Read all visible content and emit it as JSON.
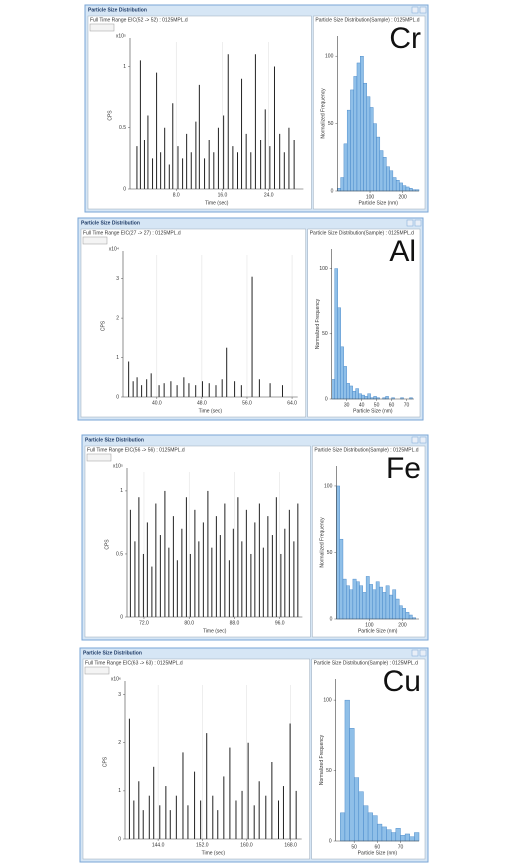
{
  "windows": [
    {
      "title": "Particle Size Distribution",
      "element": "Cr"
    },
    {
      "title": "Particle Size Distribution",
      "element": "Al"
    },
    {
      "title": "Particle Size Distribution",
      "element": "Fe"
    },
    {
      "title": "Particle Size Distribution",
      "element": "Cu"
    }
  ],
  "chart_data": [
    {
      "type": "spikes",
      "title": "Full Time Range EIC(52 -> 52) : 0125MPL.d",
      "y_scale": "x10⁵",
      "ylabel": "CPS",
      "xlabel": "Time (sec)",
      "color": "#222222",
      "grid": true,
      "xlim": [
        0,
        30
      ],
      "xticks": [
        {
          "value": 8,
          "label": "8.0"
        },
        {
          "value": 16,
          "label": "16.0"
        },
        {
          "value": 24,
          "label": "24.0"
        }
      ],
      "ylim": [
        0,
        1.2
      ],
      "yticks": [
        0,
        0.5,
        1
      ],
      "x": [
        1.2,
        1.8,
        2.5,
        3.1,
        3.9,
        4.6,
        5.3,
        6.0,
        6.8,
        7.4,
        8.3,
        9.1,
        9.8,
        10.6,
        11.4,
        12.0,
        12.9,
        13.7,
        14.5,
        15.3,
        16.2,
        17.0,
        17.8,
        18.6,
        19.3,
        20.1,
        20.9,
        21.7,
        22.6,
        23.4,
        24.2,
        25.0,
        25.9,
        26.7,
        27.5,
        28.4
      ],
      "values": [
        0.35,
        1.05,
        0.4,
        0.6,
        0.25,
        0.95,
        0.3,
        0.5,
        0.2,
        0.7,
        0.35,
        0.25,
        0.45,
        0.3,
        0.55,
        0.85,
        0.25,
        0.4,
        0.3,
        0.5,
        0.6,
        1.1,
        0.35,
        0.3,
        0.9,
        0.45,
        0.3,
        1.1,
        0.4,
        0.65,
        0.35,
        1.0,
        0.45,
        0.3,
        0.5,
        0.4
      ]
    },
    {
      "type": "histogram",
      "title": "Particle Size Distribution(Sample) : 0125MPL.d",
      "ylabel": "Normalized Frequency",
      "xlabel": "Particle Size (nm)",
      "color": "#8fbfe8",
      "xlim": [
        0,
        250
      ],
      "xticks": [
        100,
        200
      ],
      "ylim": [
        0,
        115
      ],
      "yticks": [
        0,
        50,
        100
      ],
      "bins": [
        0,
        10,
        20,
        30,
        40,
        50,
        60,
        70,
        80,
        90,
        100,
        110,
        120,
        130,
        140,
        150,
        160,
        170,
        180,
        190,
        200,
        210,
        220,
        230,
        240,
        250
      ],
      "values": [
        2,
        10,
        35,
        60,
        75,
        85,
        95,
        100,
        80,
        70,
        62,
        50,
        40,
        30,
        25,
        18,
        15,
        10,
        8,
        6,
        4,
        3,
        2,
        1,
        1
      ]
    },
    {
      "type": "spikes",
      "title": "Full Time Range EIC(27 -> 27) : 0125MPL.d",
      "y_scale": "x10⁴",
      "ylabel": "CPS",
      "xlabel": "Time (sec)",
      "color": "#222222",
      "grid": true,
      "xlim": [
        34,
        65
      ],
      "xticks": [
        {
          "value": 40,
          "label": "40.0"
        },
        {
          "value": 48,
          "label": "48.0"
        },
        {
          "value": 56,
          "label": "56.0"
        },
        {
          "value": 64,
          "label": "64.0"
        }
      ],
      "ylim": [
        0,
        3.6
      ],
      "yticks": [
        0,
        1,
        2,
        3
      ],
      "x": [
        35.0,
        35.8,
        36.5,
        37.3,
        38.2,
        39.0,
        40.4,
        41.3,
        42.5,
        43.6,
        44.8,
        45.7,
        46.9,
        48.1,
        49.3,
        50.5,
        51.6,
        52.4,
        53.8,
        55.0,
        56.9,
        58.2,
        60.1,
        62.3
      ],
      "values": [
        0.9,
        0.4,
        0.5,
        0.3,
        0.45,
        0.6,
        0.3,
        0.35,
        0.4,
        0.3,
        0.5,
        0.35,
        0.3,
        0.4,
        0.35,
        0.3,
        0.45,
        1.25,
        0.4,
        0.3,
        3.05,
        0.45,
        0.35,
        0.3
      ]
    },
    {
      "type": "histogram",
      "title": "Particle Size Distribution(Sample) : 0125MPL.d",
      "ylabel": "Normalized Frequency",
      "xlabel": "Particle Size (nm)",
      "color": "#8fbfe8",
      "xlim": [
        20,
        75
      ],
      "xticks": [
        30,
        40,
        50,
        60,
        70
      ],
      "ylim": [
        0,
        115
      ],
      "yticks": [
        0,
        50,
        100
      ],
      "bins": [
        20,
        22,
        24,
        26,
        28,
        30,
        32,
        34,
        36,
        38,
        40,
        42,
        44,
        46,
        48,
        50,
        52,
        54,
        56,
        58,
        60,
        62,
        64,
        66,
        68,
        70,
        72,
        74
      ],
      "values": [
        15,
        100,
        70,
        40,
        25,
        12,
        10,
        6,
        8,
        4,
        3,
        2,
        4,
        1,
        2,
        1,
        0,
        1,
        2,
        0,
        1,
        0,
        0,
        1,
        0,
        0,
        1
      ]
    },
    {
      "type": "spikes",
      "title": "Full Time Range EIC(56 -> 56) : 0125MPL.d",
      "y_scale": "x10⁵",
      "ylabel": "CPS",
      "xlabel": "Time (sec)",
      "color": "#222222",
      "grid": true,
      "xlim": [
        69,
        100
      ],
      "xticks": [
        {
          "value": 72,
          "label": "72.0"
        },
        {
          "value": 80,
          "label": "80.0"
        },
        {
          "value": 88,
          "label": "88.0"
        },
        {
          "value": 96,
          "label": "96.0"
        }
      ],
      "ylim": [
        0,
        1.15
      ],
      "yticks": [
        0,
        0.5,
        1
      ],
      "x": [
        69.6,
        70.4,
        71.1,
        71.9,
        72.6,
        73.4,
        74.1,
        74.9,
        75.7,
        76.4,
        77.2,
        77.9,
        78.7,
        79.5,
        80.2,
        81.0,
        81.7,
        82.5,
        83.3,
        84.0,
        84.8,
        85.5,
        86.3,
        87.1,
        87.8,
        88.6,
        89.3,
        90.1,
        90.9,
        91.6,
        92.4,
        93.1,
        93.9,
        94.7,
        95.4,
        96.2,
        96.9,
        97.7,
        98.5,
        99.2
      ],
      "values": [
        0.85,
        0.6,
        0.95,
        0.5,
        0.75,
        0.4,
        0.9,
        0.65,
        1.0,
        0.55,
        0.8,
        0.45,
        0.7,
        0.95,
        0.5,
        0.85,
        0.6,
        0.75,
        1.0,
        0.55,
        0.8,
        0.65,
        0.9,
        0.45,
        0.7,
        0.95,
        0.6,
        0.85,
        0.5,
        0.75,
        0.9,
        0.55,
        0.8,
        0.65,
        0.95,
        0.5,
        0.7,
        0.85,
        0.6,
        0.9
      ]
    },
    {
      "type": "histogram",
      "title": "Particle Size Distribution(Sample) : 0125MPL.d",
      "ylabel": "Normalized Frequency",
      "xlabel": "Particle Size (nm)",
      "color": "#8fbfe8",
      "xlim": [
        0,
        250
      ],
      "xticks": [
        100,
        200
      ],
      "ylim": [
        0,
        115
      ],
      "yticks": [
        0,
        50,
        100
      ],
      "bins": [
        0,
        10,
        20,
        30,
        40,
        50,
        60,
        70,
        80,
        90,
        100,
        110,
        120,
        130,
        140,
        150,
        160,
        170,
        180,
        190,
        200,
        210,
        220,
        230,
        240,
        250
      ],
      "values": [
        100,
        60,
        30,
        25,
        22,
        30,
        28,
        25,
        20,
        32,
        26,
        22,
        28,
        24,
        20,
        25,
        18,
        22,
        15,
        10,
        8,
        5,
        3,
        1,
        0
      ]
    },
    {
      "type": "spikes",
      "title": "Full Time Range EIC(63 -> 63) : 0125MPL.d",
      "y_scale": "x10⁶",
      "ylabel": "CPS",
      "xlabel": "Time (sec)",
      "color": "#222222",
      "grid": true,
      "xlim": [
        138,
        170
      ],
      "xticks": [
        {
          "value": 144,
          "label": "144.0"
        },
        {
          "value": 152,
          "label": "152.0"
        },
        {
          "value": 160,
          "label": "160.0"
        },
        {
          "value": 168,
          "label": "168.0"
        }
      ],
      "ylim": [
        0,
        3.2
      ],
      "yticks": [
        0,
        1,
        2,
        3
      ],
      "x": [
        138.8,
        139.6,
        140.5,
        141.3,
        142.4,
        143.2,
        144.3,
        145.4,
        146.2,
        147.3,
        148.5,
        149.4,
        150.6,
        151.7,
        152.8,
        153.9,
        154.8,
        155.9,
        157.0,
        158.1,
        159.2,
        160.3,
        161.4,
        162.3,
        163.5,
        164.6,
        165.8,
        166.7,
        167.9,
        169.0
      ],
      "values": [
        2.5,
        0.8,
        1.2,
        0.6,
        0.9,
        1.5,
        0.7,
        1.1,
        0.6,
        0.9,
        1.8,
        0.7,
        1.4,
        0.8,
        2.2,
        0.9,
        0.6,
        1.3,
        1.9,
        0.8,
        1.0,
        2.0,
        0.7,
        1.2,
        0.9,
        1.6,
        0.8,
        1.1,
        2.4,
        1.0
      ]
    },
    {
      "type": "histogram",
      "title": "Particle Size Distribution(Sample) : 0125MPL.d",
      "ylabel": "Normalized Frequency",
      "xlabel": "Particle Size (nm)",
      "color": "#8fbfe8",
      "xlim": [
        42,
        78
      ],
      "xticks": [
        50,
        60,
        70
      ],
      "ylim": [
        0,
        115
      ],
      "yticks": [
        0,
        50,
        100
      ],
      "bins": [
        44,
        46,
        48,
        50,
        52,
        54,
        56,
        58,
        60,
        62,
        64,
        66,
        68,
        70,
        72,
        74,
        76,
        78
      ],
      "values": [
        20,
        100,
        80,
        45,
        35,
        25,
        20,
        18,
        12,
        10,
        8,
        6,
        9,
        4,
        5,
        3,
        6
      ]
    }
  ]
}
